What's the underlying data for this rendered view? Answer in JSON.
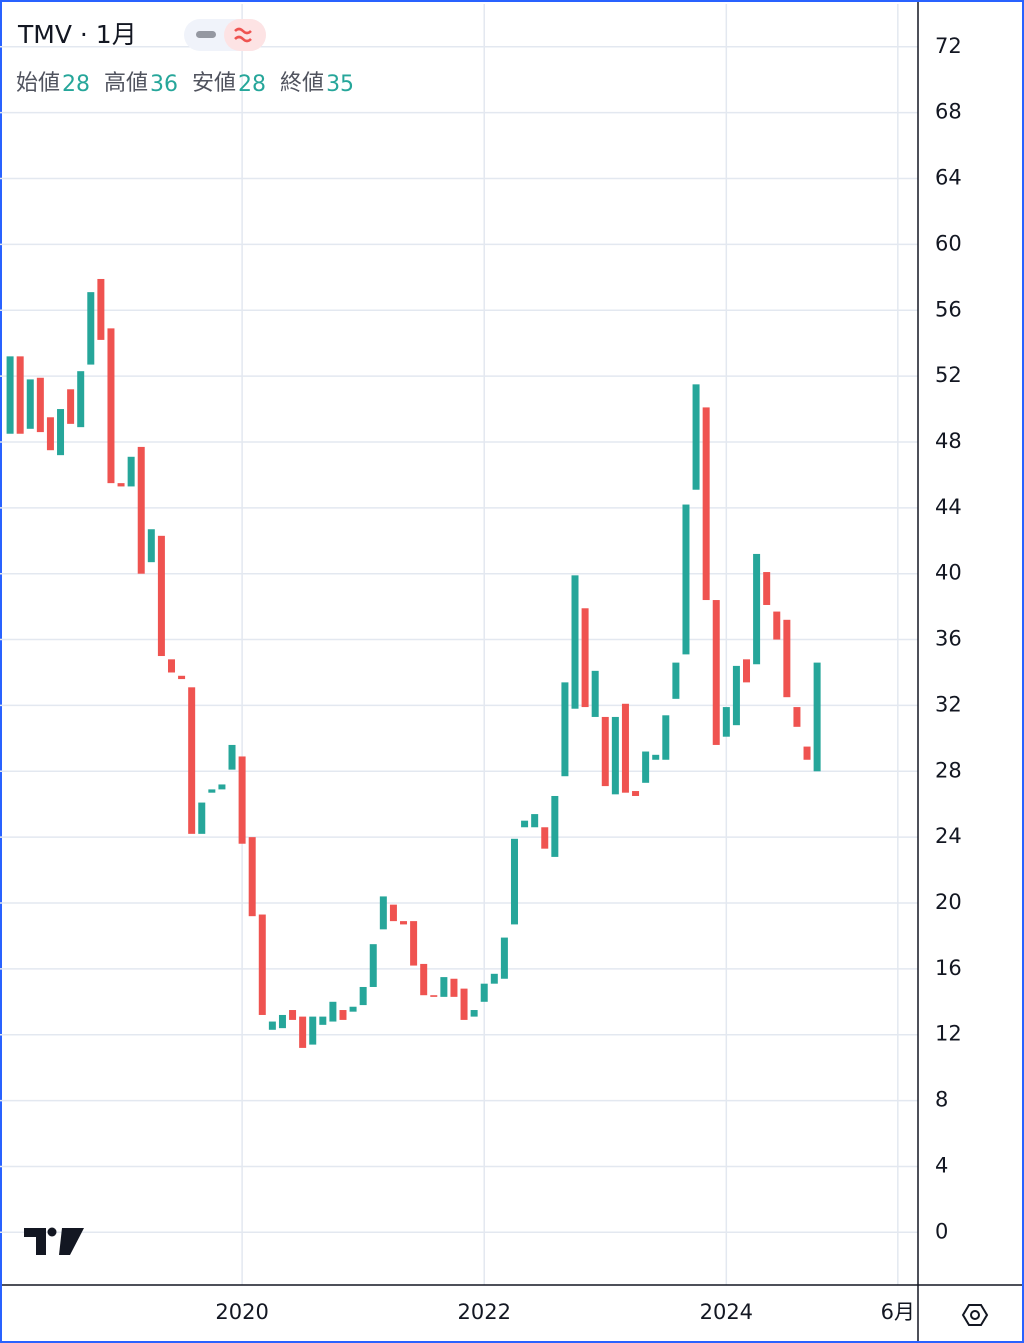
{
  "chart_data": {
    "type": "candlestick",
    "title": "TMV · 1月",
    "legend": [
      {
        "label": "始値",
        "value": 28
      },
      {
        "label": "高値",
        "value": 36
      },
      {
        "label": "安値",
        "value": 28
      },
      {
        "label": "終値",
        "value": 35
      }
    ],
    "x": [
      "2018-02",
      "2018-03",
      "2018-04",
      "2018-05",
      "2018-06",
      "2018-07",
      "2018-08",
      "2018-09",
      "2018-10",
      "2018-11",
      "2018-12",
      "2019-01",
      "2019-02",
      "2019-03",
      "2019-04",
      "2019-05",
      "2019-06",
      "2019-07",
      "2019-08",
      "2019-09",
      "2019-10",
      "2019-11",
      "2019-12",
      "2020-01",
      "2020-02",
      "2020-03",
      "2020-04",
      "2020-05",
      "2020-06",
      "2020-07",
      "2020-08",
      "2020-09",
      "2020-10",
      "2020-11",
      "2020-12",
      "2021-01",
      "2021-02",
      "2021-03",
      "2021-04",
      "2021-05",
      "2021-06",
      "2021-07",
      "2021-08",
      "2021-09",
      "2021-10",
      "2021-11",
      "2021-12",
      "2022-01",
      "2022-02",
      "2022-03",
      "2022-04",
      "2022-05",
      "2022-06",
      "2022-07",
      "2022-08",
      "2022-09",
      "2022-10",
      "2022-11",
      "2022-12",
      "2023-01",
      "2023-02",
      "2023-03",
      "2023-04",
      "2023-05",
      "2023-06",
      "2023-07",
      "2023-08",
      "2023-09",
      "2023-10",
      "2023-11",
      "2023-12",
      "2024-01",
      "2024-02",
      "2024-03",
      "2024-04",
      "2024-05",
      "2024-06",
      "2024-07",
      "2024-08",
      "2024-09",
      "2024-10"
    ],
    "open": [
      48.5,
      53.2,
      48.8,
      51.9,
      49.5,
      47.2,
      51.2,
      48.9,
      52.7,
      57.9,
      54.9,
      45.5,
      45.3,
      47.7,
      40.7,
      42.3,
      34.8,
      33.8,
      33.1,
      24.2,
      26.7,
      26.9,
      28.1,
      28.9,
      24.0,
      19.3,
      12.3,
      12.4,
      13.5,
      13.1,
      11.4,
      12.6,
      12.8,
      13.5,
      13.4,
      13.8,
      14.9,
      18.4,
      19.9,
      18.9,
      18.9,
      16.3,
      14.4,
      14.3,
      15.4,
      14.8,
      13.1,
      14.0,
      15.1,
      15.4,
      18.7,
      24.6,
      24.6,
      24.6,
      22.8,
      27.7,
      31.8,
      37.9,
      31.3,
      31.3,
      26.6,
      32.1,
      26.8,
      27.3,
      28.7,
      28.7,
      32.4,
      35.1,
      45.1,
      50.1,
      38.4,
      30.1,
      30.8,
      34.8,
      34.5,
      40.1,
      37.7,
      37.2,
      31.9,
      29.5,
      28.0
    ],
    "close": [
      53.2,
      48.5,
      51.8,
      48.6,
      47.5,
      50.0,
      49.1,
      52.3,
      57.1,
      54.2,
      45.5,
      45.3,
      47.1,
      40.0,
      42.7,
      35.0,
      34.0,
      33.6,
      24.2,
      26.1,
      26.9,
      27.2,
      29.6,
      23.6,
      19.2,
      13.2,
      12.8,
      13.2,
      12.9,
      11.2,
      13.1,
      13.1,
      14.0,
      12.9,
      13.7,
      14.9,
      17.5,
      20.4,
      18.9,
      18.7,
      16.2,
      14.4,
      14.3,
      15.5,
      14.3,
      12.9,
      13.5,
      15.1,
      15.7,
      17.9,
      23.9,
      25.0,
      25.4,
      23.3,
      26.5,
      33.4,
      39.9,
      31.9,
      34.1,
      27.1,
      31.3,
      26.7,
      26.5,
      29.2,
      29.0,
      31.4,
      34.6,
      44.2,
      51.5,
      38.4,
      29.6,
      31.9,
      34.4,
      33.4,
      41.2,
      38.1,
      36.0,
      32.5,
      30.7,
      28.7,
      34.6
    ],
    "up_color": "#26a69a",
    "down_color": "#ef5350",
    "xlim": [
      "2018-01",
      "2025-08"
    ],
    "xticks": [
      {
        "value": "2020-01",
        "label": "2020"
      },
      {
        "value": "2022-01",
        "label": "2022"
      },
      {
        "value": "2024-01",
        "label": "2024"
      },
      {
        "value": "2025-06",
        "label": "6月"
      }
    ],
    "ylim": [
      -3.2,
      74.6
    ],
    "yticks": [
      0,
      4,
      8,
      12,
      16,
      20,
      24,
      28,
      32,
      36,
      40,
      44,
      48,
      52,
      56,
      60,
      64,
      68,
      72
    ],
    "grid": true
  }
}
